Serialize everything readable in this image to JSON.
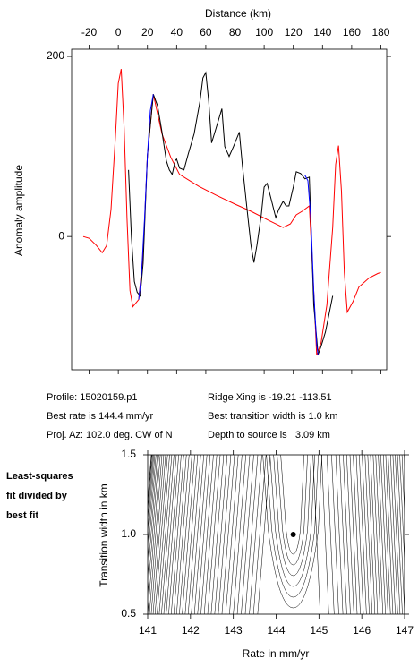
{
  "chart_data": [
    {
      "type": "line",
      "x_label": "Distance (km)",
      "y_label": "Anomaly amplitude",
      "xlim": [
        -32,
        184
      ],
      "xticks": [
        -20,
        0,
        20,
        40,
        60,
        80,
        100,
        120,
        140,
        160,
        180
      ],
      "ylim": [
        -148,
        208
      ],
      "yticks": [
        0,
        200
      ],
      "series": [
        {
          "color": "#ff0000",
          "x": [
            -24,
            -20,
            -15,
            -11,
            -8,
            -5,
            -2,
            0,
            2,
            4,
            6,
            8,
            10,
            12,
            14,
            17,
            20,
            24,
            30,
            36,
            42,
            55,
            67,
            80,
            91,
            103,
            113,
            118,
            122,
            126,
            131,
            134,
            136,
            139,
            143,
            147,
            149,
            151,
            153,
            155,
            157,
            161,
            165,
            172,
            178,
            180
          ],
          "values": [
            0,
            -2,
            -10,
            -18,
            -10,
            30,
            110,
            170,
            186,
            120,
            20,
            -60,
            -78,
            -74,
            -70,
            -20,
            90,
            158,
            114,
            88,
            69,
            56,
            46,
            36,
            28,
            18,
            10,
            14,
            24,
            28,
            34,
            -60,
            -132,
            -118,
            -76,
            10,
            80,
            101,
            50,
            -40,
            -84,
            -72,
            -56,
            -46,
            -41,
            -40
          ]
        },
        {
          "color": "#000000",
          "x": [
            7,
            9,
            11,
            13,
            15,
            17,
            20,
            24,
            27,
            30,
            33,
            35,
            37,
            39,
            40,
            42,
            45,
            48,
            52,
            56,
            58,
            60,
            62,
            64,
            67,
            71,
            73,
            76,
            79,
            83,
            85,
            88,
            91,
            93,
            95,
            98,
            100,
            102,
            105,
            108,
            110,
            113,
            115,
            117,
            120,
            122,
            125,
            128,
            131,
            134,
            137,
            139,
            142,
            147
          ],
          "values": [
            74,
            0,
            -50,
            -62,
            -66,
            -30,
            90,
            158,
            145,
            116,
            84,
            74,
            69,
            84,
            86,
            76,
            74,
            92,
            114,
            150,
            176,
            182,
            150,
            104,
            120,
            142,
            100,
            89,
            100,
            116,
            80,
            34,
            -10,
            -29,
            -10,
            24,
            55,
            59,
            40,
            21,
            30,
            39,
            34,
            34,
            55,
            72,
            70,
            64,
            66,
            -76,
            -131,
            -122,
            -106,
            -66
          ]
        },
        {
          "color": "#0000ff",
          "x": [
            14,
            16,
            18,
            20,
            22,
            24,
            null,
            128,
            130,
            132,
            134,
            136,
            137
          ],
          "values": [
            -70,
            -40,
            20,
            90,
            140,
            158,
            null,
            68,
            62,
            20,
            -60,
            -120,
            -132
          ]
        }
      ],
      "annotations": [
        "Profile: 15020159.p1",
        "Best rate is 144.4 mm/yr",
        "Proj. Az: 102.0 deg. CW of N",
        "Ridge Xing is -19.21 -113.51",
        "Best transition width is 1.0 km",
        "Depth to source is   3.09 km"
      ]
    },
    {
      "type": "contour",
      "x_label": "Rate in mm/yr",
      "y_label": "Transition width in km",
      "xlim": [
        141,
        147
      ],
      "xticks": [
        141,
        142,
        143,
        144,
        145,
        146,
        147
      ],
      "ylim": [
        0.5,
        1.5
      ],
      "yticks": [
        {
          "value": 0.5,
          "label": "0.5"
        },
        {
          "value": 1,
          "label": "1.0"
        },
        {
          "value": 1.5,
          "label": "1.5"
        }
      ],
      "best_point": {
        "x": 144.4,
        "y": 1.0
      },
      "annotation": [
        "Least-squares",
        "fit divided by",
        "best fit"
      ]
    }
  ]
}
